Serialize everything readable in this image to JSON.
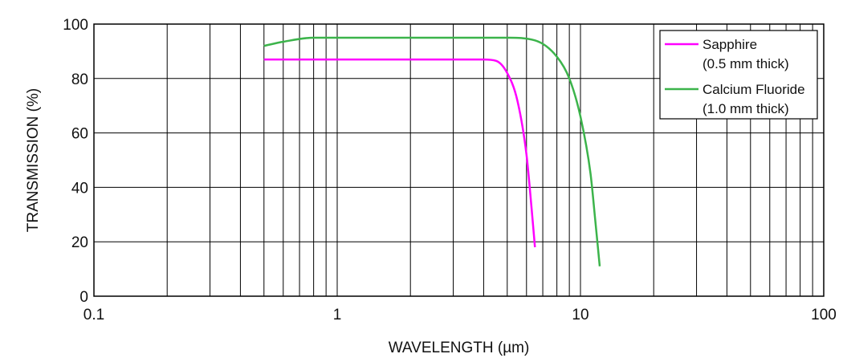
{
  "chart_data": {
    "type": "line",
    "title": "",
    "xlabel": "WAVELENGTH (µm)",
    "ylabel": "TRANSMISSION (%)",
    "x_scale": "log",
    "xlim": [
      0.1,
      100
    ],
    "ylim": [
      0,
      100
    ],
    "x_tick_labels": [
      "0.1",
      "1",
      "10",
      "100"
    ],
    "x_ticks": [
      0.1,
      1,
      10,
      100
    ],
    "y_tick_labels": [
      "0",
      "20",
      "40",
      "60",
      "80",
      "100"
    ],
    "y_ticks": [
      0,
      20,
      40,
      60,
      80,
      100
    ],
    "grid": true,
    "legend_position": "top-right",
    "series": [
      {
        "name": "Sapphire",
        "name_line2": "(0.5 mm thick)",
        "color": "#ff00ff",
        "x": [
          0.5,
          1,
          2,
          4,
          4.5,
          5,
          5.5,
          6,
          6.3,
          6.5
        ],
        "y": [
          87,
          87,
          87,
          87,
          86.5,
          82,
          72,
          52,
          32,
          18
        ]
      },
      {
        "name": "Calcium Fluoride",
        "name_line2": "(1.0 mm thick)",
        "color": "#3cb44b",
        "x": [
          0.5,
          0.6,
          0.8,
          1,
          3,
          5,
          6.5,
          8,
          9,
          10,
          11,
          11.5,
          12
        ],
        "y": [
          92,
          93.5,
          95,
          95,
          95,
          95,
          94,
          88,
          80,
          66,
          45,
          28,
          11
        ]
      }
    ]
  }
}
